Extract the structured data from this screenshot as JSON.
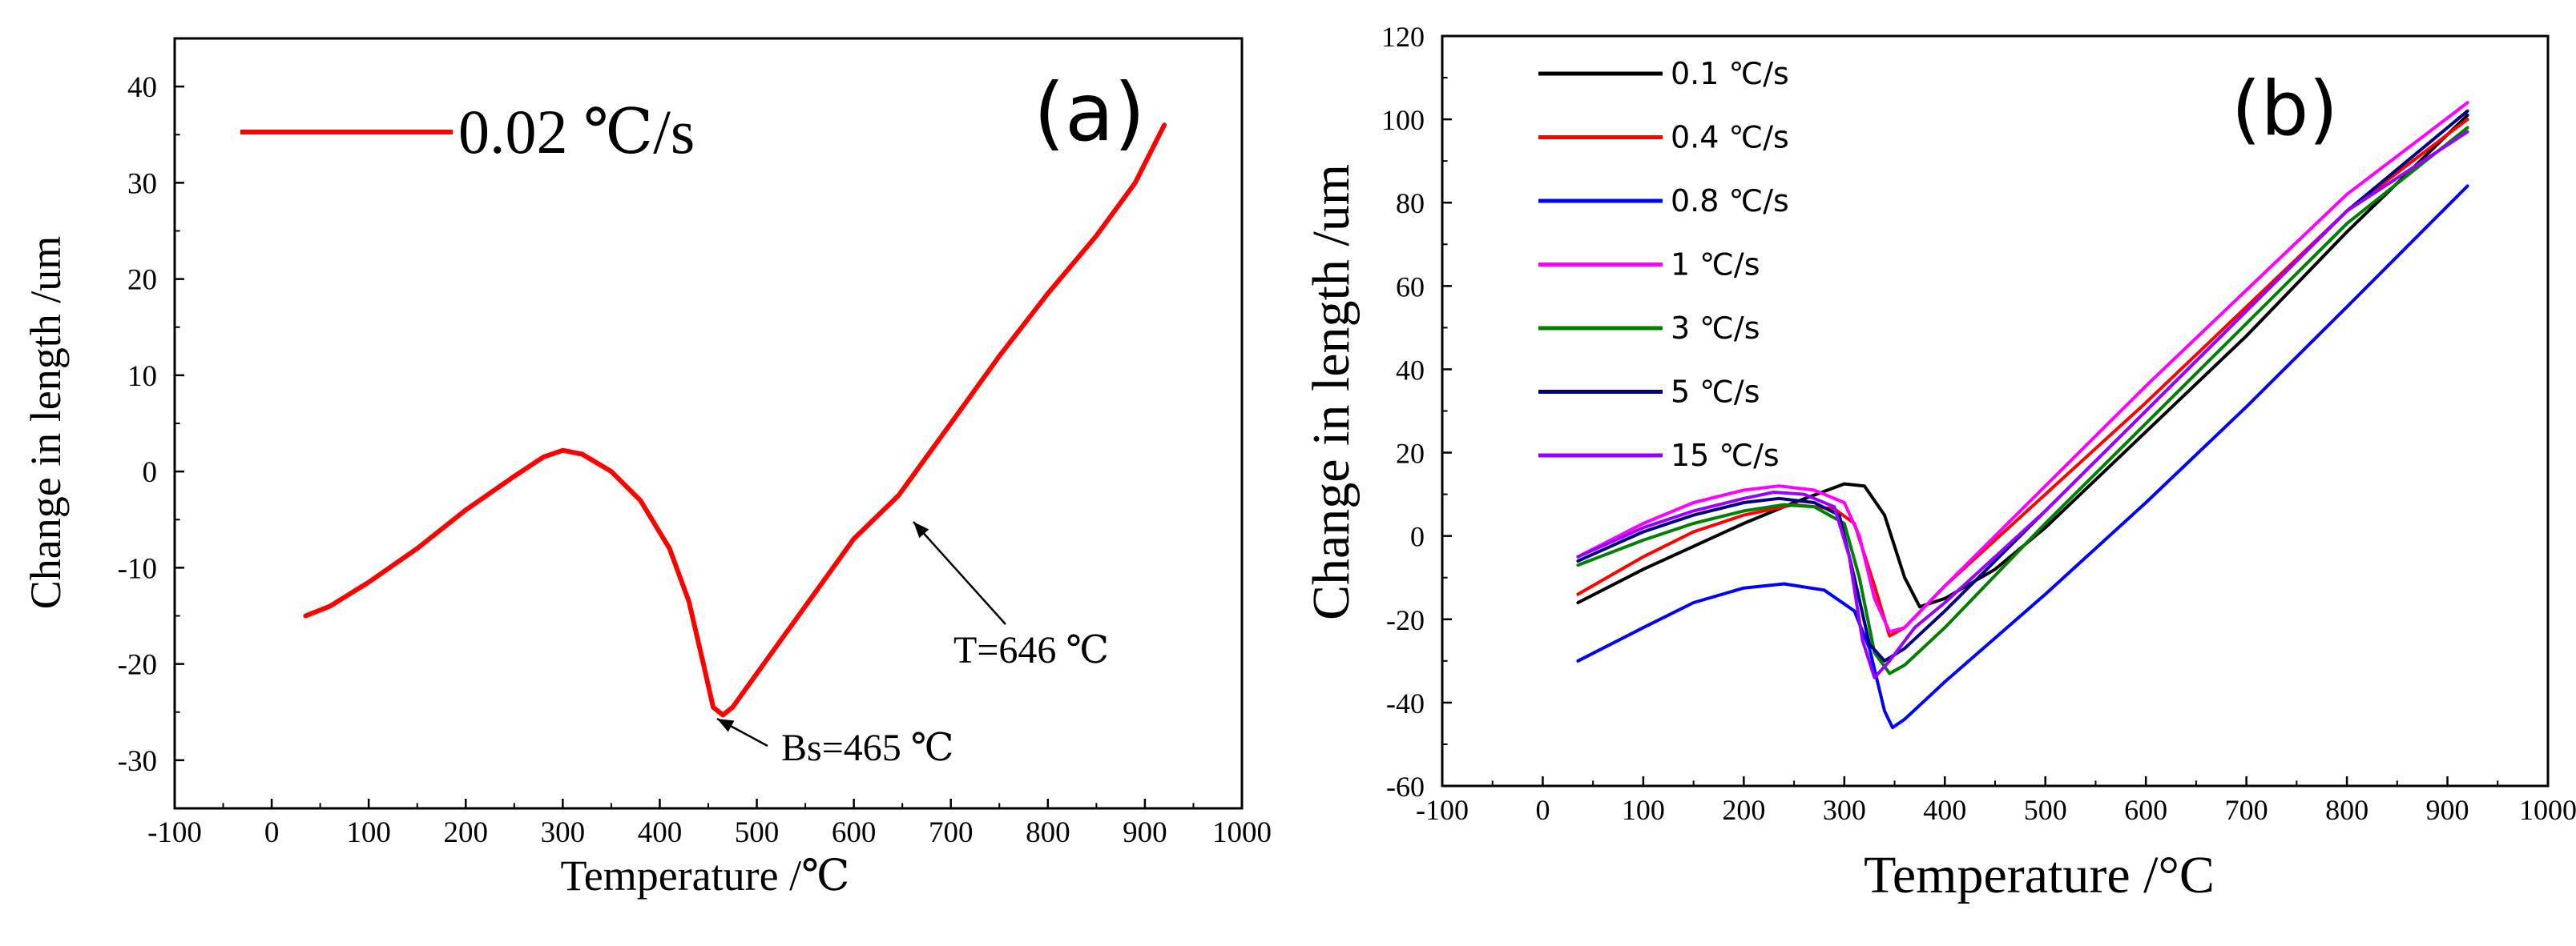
{
  "chart_data": [
    {
      "type": "line",
      "panel_label": "(a)",
      "title": "",
      "xlabel": "Temperature /℃",
      "ylabel": "Change in length /um",
      "xlim": [
        -100,
        1000
      ],
      "ylim": [
        -35,
        45
      ],
      "xticks": [
        -100,
        0,
        100,
        200,
        300,
        400,
        500,
        600,
        700,
        800,
        900,
        1000
      ],
      "yticks": [
        -30,
        -20,
        -10,
        0,
        10,
        20,
        30,
        40
      ],
      "legend": [
        {
          "label": "0.02 ℃/s",
          "color": "#ff0000"
        }
      ],
      "series": [
        {
          "name": "0.02 ℃/s",
          "color": "#ff0000",
          "points": [
            [
              35,
              -15
            ],
            [
              60,
              -14
            ],
            [
              100,
              -11.5
            ],
            [
              150,
              -8
            ],
            [
              200,
              -4
            ],
            [
              250,
              -0.5
            ],
            [
              280,
              1.5
            ],
            [
              300,
              2.2
            ],
            [
              320,
              1.8
            ],
            [
              350,
              0
            ],
            [
              380,
              -3
            ],
            [
              410,
              -8
            ],
            [
              430,
              -13.5
            ],
            [
              445,
              -20
            ],
            [
              455,
              -24.5
            ],
            [
              465,
              -25.3
            ],
            [
              475,
              -24.5
            ],
            [
              500,
              -21
            ],
            [
              550,
              -14
            ],
            [
              600,
              -7
            ],
            [
              646,
              -2.5
            ],
            [
              700,
              5
            ],
            [
              750,
              12
            ],
            [
              800,
              18.5
            ],
            [
              850,
              24.5
            ],
            [
              890,
              30
            ],
            [
              920,
              36
            ]
          ]
        }
      ],
      "annotations": [
        {
          "text": "Bs=465 ℃",
          "x": 465,
          "y": -25.3
        },
        {
          "text": "T=646 ℃",
          "x": 646,
          "y": -2.5
        }
      ]
    },
    {
      "type": "line",
      "panel_label": "(b)",
      "title": "",
      "xlabel": "Temperature /°C",
      "ylabel": "Change in length /um",
      "xlim": [
        -100,
        1000
      ],
      "ylim": [
        -60,
        120
      ],
      "xticks": [
        -100,
        0,
        100,
        200,
        300,
        400,
        500,
        600,
        700,
        800,
        900,
        1000
      ],
      "yticks": [
        -60,
        -40,
        -20,
        0,
        20,
        40,
        60,
        80,
        100,
        120
      ],
      "legend": [
        {
          "label": "0.1 ℃/s",
          "color": "#000000"
        },
        {
          "label": "0.4 ℃/s",
          "color": "#ff0000"
        },
        {
          "label": "0.8 ℃/s",
          "color": "#0000ff"
        },
        {
          "label": "1 ℃/s",
          "color": "#ff00ff"
        },
        {
          "label": "3 ℃/s",
          "color": "#008000"
        },
        {
          "label": "5 ℃/s",
          "color": "#000080"
        },
        {
          "label": "15 ℃/s",
          "color": "#9900ff"
        }
      ],
      "series": [
        {
          "name": "0.1 ℃/s",
          "color": "#000000",
          "points": [
            [
              35,
              -16
            ],
            [
              100,
              -8
            ],
            [
              200,
              3
            ],
            [
              250,
              8
            ],
            [
              300,
              12.5
            ],
            [
              320,
              12
            ],
            [
              340,
              5
            ],
            [
              360,
              -10
            ],
            [
              375,
              -17
            ],
            [
              400,
              -15
            ],
            [
              450,
              -8
            ],
            [
              500,
              2
            ],
            [
              600,
              25
            ],
            [
              700,
              48
            ],
            [
              800,
              73
            ],
            [
              920,
              101
            ]
          ]
        },
        {
          "name": "0.4 ℃/s",
          "color": "#ff0000",
          "points": [
            [
              35,
              -14
            ],
            [
              100,
              -5
            ],
            [
              150,
              1
            ],
            [
              200,
              5
            ],
            [
              250,
              7.5
            ],
            [
              290,
              6.5
            ],
            [
              310,
              3
            ],
            [
              330,
              -12
            ],
            [
              345,
              -24
            ],
            [
              360,
              -22
            ],
            [
              400,
              -12
            ],
            [
              500,
              10
            ],
            [
              600,
              32
            ],
            [
              700,
              55
            ],
            [
              800,
              78
            ],
            [
              920,
              100
            ]
          ]
        },
        {
          "name": "0.8 ℃/s",
          "color": "#0000ff",
          "points": [
            [
              35,
              -30
            ],
            [
              100,
              -22
            ],
            [
              150,
              -16
            ],
            [
              200,
              -12.5
            ],
            [
              240,
              -11.5
            ],
            [
              280,
              -13
            ],
            [
              310,
              -18
            ],
            [
              325,
              -27
            ],
            [
              340,
              -42
            ],
            [
              348,
              -46
            ],
            [
              360,
              -44
            ],
            [
              400,
              -35
            ],
            [
              500,
              -14
            ],
            [
              600,
              8
            ],
            [
              700,
              31
            ],
            [
              800,
              55
            ],
            [
              920,
              84
            ]
          ]
        },
        {
          "name": "1 ℃/s",
          "color": "#ff00ff",
          "points": [
            [
              35,
              -5
            ],
            [
              100,
              3
            ],
            [
              150,
              8
            ],
            [
              200,
              11
            ],
            [
              235,
              12
            ],
            [
              270,
              11
            ],
            [
              300,
              8
            ],
            [
              315,
              0
            ],
            [
              330,
              -15
            ],
            [
              345,
              -23
            ],
            [
              360,
              -22
            ],
            [
              400,
              -12
            ],
            [
              500,
              12
            ],
            [
              600,
              36
            ],
            [
              700,
              59
            ],
            [
              800,
              82
            ],
            [
              920,
              104
            ]
          ]
        },
        {
          "name": "3 ℃/s",
          "color": "#008000",
          "points": [
            [
              35,
              -7
            ],
            [
              100,
              -1
            ],
            [
              150,
              3
            ],
            [
              200,
              6
            ],
            [
              240,
              7.5
            ],
            [
              270,
              7
            ],
            [
              300,
              3
            ],
            [
              315,
              -10
            ],
            [
              330,
              -28
            ],
            [
              345,
              -33
            ],
            [
              360,
              -31
            ],
            [
              400,
              -22
            ],
            [
              500,
              3
            ],
            [
              600,
              27
            ],
            [
              700,
              51
            ],
            [
              800,
              75
            ],
            [
              920,
              98
            ]
          ]
        },
        {
          "name": "5 ℃/s",
          "color": "#000080",
          "points": [
            [
              35,
              -6
            ],
            [
              100,
              1
            ],
            [
              150,
              5
            ],
            [
              200,
              8
            ],
            [
              235,
              9
            ],
            [
              270,
              8
            ],
            [
              295,
              5
            ],
            [
              310,
              -10
            ],
            [
              325,
              -26
            ],
            [
              340,
              -30
            ],
            [
              360,
              -27
            ],
            [
              400,
              -18
            ],
            [
              500,
              6
            ],
            [
              600,
              30
            ],
            [
              700,
              54
            ],
            [
              800,
              78
            ],
            [
              920,
              102
            ]
          ]
        },
        {
          "name": "15 ℃/s",
          "color": "#9900ff",
          "points": [
            [
              35,
              -5
            ],
            [
              100,
              2
            ],
            [
              150,
              6
            ],
            [
              200,
              9
            ],
            [
              230,
              10.5
            ],
            [
              260,
              10
            ],
            [
              290,
              7
            ],
            [
              305,
              -5
            ],
            [
              318,
              -25
            ],
            [
              330,
              -34
            ],
            [
              345,
              -30
            ],
            [
              370,
              -22
            ],
            [
              400,
              -16
            ],
            [
              500,
              6
            ],
            [
              600,
              30
            ],
            [
              700,
              54
            ],
            [
              800,
              78
            ],
            [
              920,
              97
            ]
          ]
        }
      ]
    }
  ]
}
